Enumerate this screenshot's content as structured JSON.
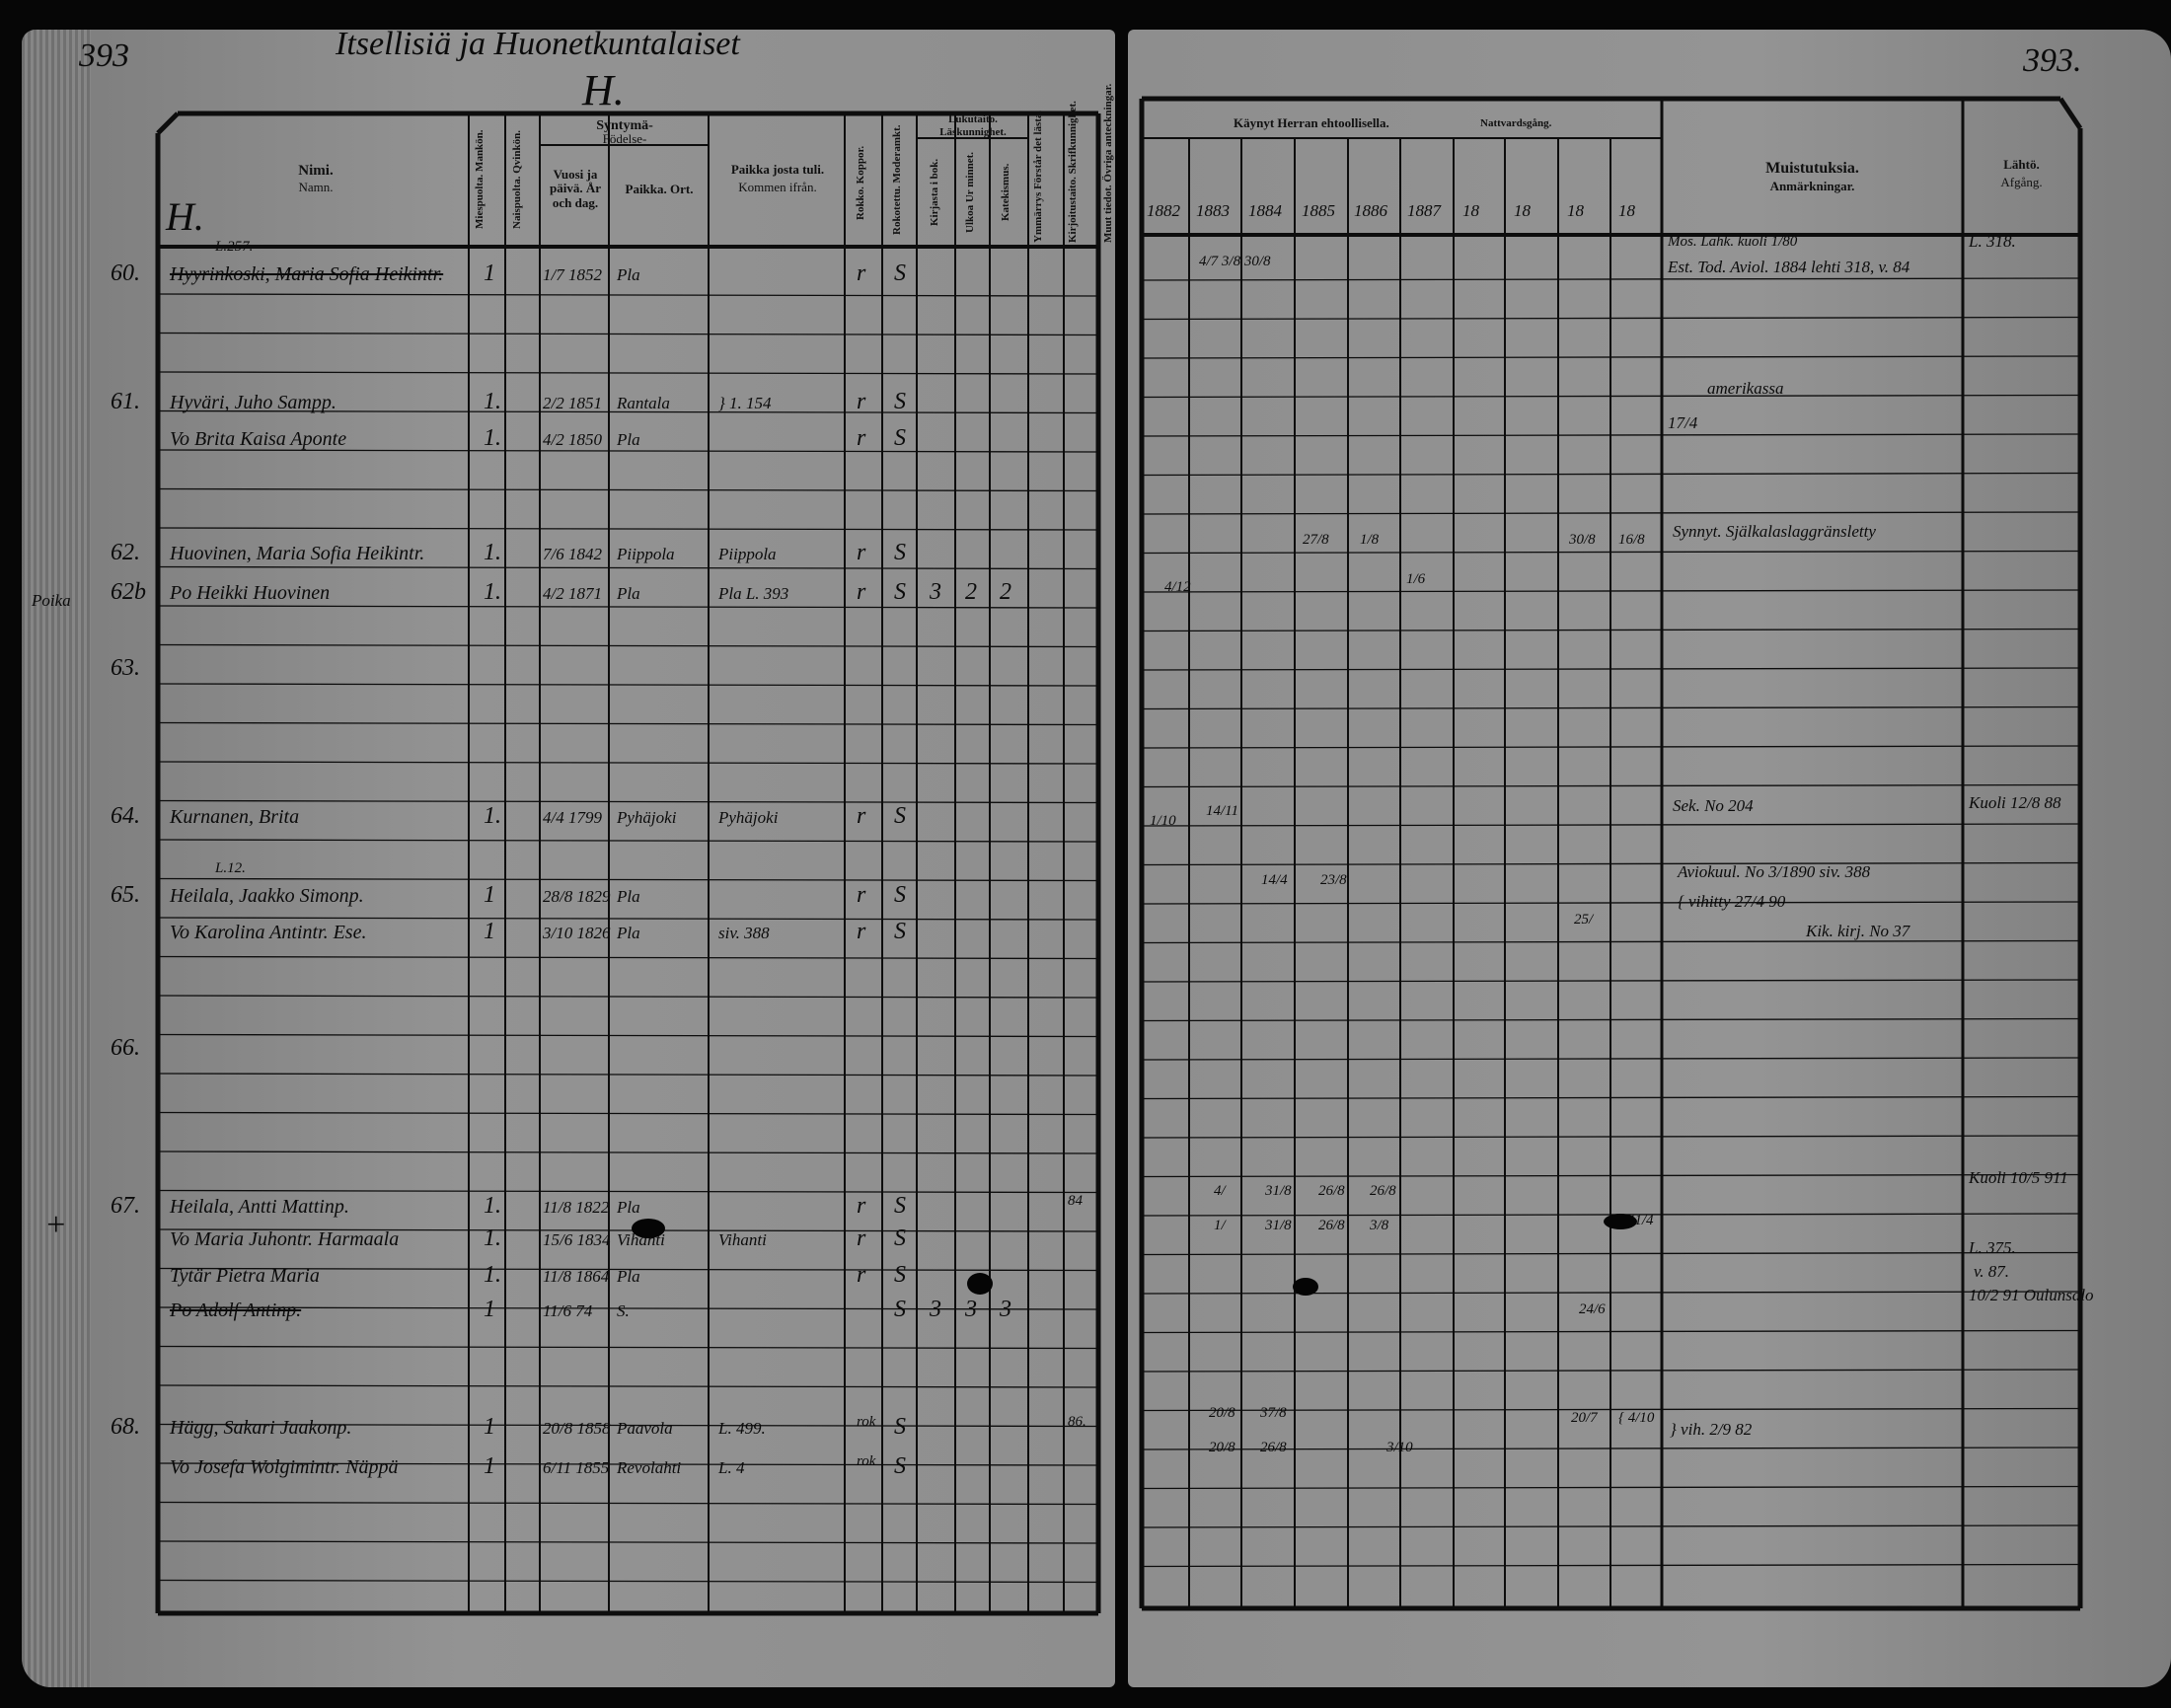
{
  "left_page": {
    "page_number": "393",
    "title": "Itsellisiä ja Huonetkuntalaiset",
    "letter": "H.",
    "section_letter": "H.",
    "headers": {
      "name": "Nimi.",
      "name_sv": "Namn.",
      "male": "Miespuolta. Mankön.",
      "female": "Naispuolta. Qvinkön.",
      "birth": "Syntymä-",
      "birth_sv": "Födelse-",
      "birth_date": "Vuosi ja päivä. År och dag.",
      "birth_place": "Paikka. Ort.",
      "came_from": "Paikka josta tuli.",
      "came_from_sv": "Kommen ifrån.",
      "smallpox": "Rokko. Koppor.",
      "vaccination": "Rokotettu. Moderamkt.",
      "reading": "Lukutaito.",
      "reading_sv": "Läskunnighet.",
      "read_book": "Kirjasta i bok.",
      "read_memory": "Ulkoa Ur minnet.",
      "catechism": "Katekismus.",
      "explanation": "Ymmärrys Förstår det lästa.",
      "writing": "Kirjoitustaito. Skrifkunnighet.",
      "other": "Muut tiedot. Övriga anteckningar."
    },
    "margin": [
      "Poika",
      "+"
    ],
    "rows": [
      {
        "num": "60.",
        "note": "L.257.",
        "name": "Hyyrinkoski, Maria Sofia Heikintr.",
        "struck": true,
        "sex": "1",
        "born": "1/7 1852",
        "place": "Pla",
        "c1": "r",
        "c2": "S"
      },
      {
        "num": "61.",
        "name": "Hyväri, Juho Sampp.",
        "sex": "1.",
        "born": "2/2 1851",
        "place": "Rantala",
        "from": "} 1. 154",
        "c1": "r",
        "c2": "S"
      },
      {
        "num": "",
        "name": "Vo Brita Kaisa Aponte",
        "sex": "1.",
        "born": "4/2 1850",
        "place": "Pla",
        "c1": "r",
        "c2": "S"
      },
      {
        "num": "62.",
        "name": "Huovinen, Maria Sofia Heikintr.",
        "sex": "1.",
        "born": "7/6 1842",
        "place": "Piippola",
        "from": "Piippola",
        "c1": "r",
        "c2": "S"
      },
      {
        "num": "62b",
        "name": "Po Heikki Huovinen",
        "sex": "1.",
        "born": "4/2 1871",
        "place": "Pla",
        "from": "Pla L. 393",
        "c1": "r",
        "c2": "S",
        "c3": "3",
        "c4": "2",
        "c5": "2"
      },
      {
        "num": "63."
      },
      {
        "num": "64.",
        "name": "Kurnanen, Brita",
        "sex": "1.",
        "born": "4/4 1799",
        "place": "Pyhäjoki",
        "from": "Pyhäjoki",
        "c1": "r",
        "c2": "S"
      },
      {
        "num": "65.",
        "note": "L.12.",
        "name": "Heilala, Jaakko Simonp.",
        "sex": "1",
        "born": "28/8 1829",
        "place": "Pla",
        "c1": "r",
        "c2": "S"
      },
      {
        "num": "",
        "name": "Vo Karolina Antintr. Ese.",
        "sex": "1",
        "born": "3/10 1826",
        "place": "Pla",
        "from": "siv. 388",
        "c1": "r",
        "c2": "S"
      },
      {
        "num": "66."
      },
      {
        "num": "67.",
        "name": "Heilala, Antti Mattinp.",
        "sex": "1.",
        "born": "11/8 1822",
        "place": "Pla",
        "c1": "r",
        "c2": "S",
        "c6": "84"
      },
      {
        "num": "",
        "name": "Vo Maria Juhontr. Harmaala",
        "sex": "1.",
        "born": "15/6 1834",
        "place": "Vihanti",
        "from": "Vihanti",
        "c1": "r",
        "c2": "S"
      },
      {
        "num": "",
        "name": "Tytär Pietra Maria",
        "sex": "1.",
        "born": "11/8 1864",
        "place": "Pla",
        "c1": "r",
        "c2": "S"
      },
      {
        "num": "",
        "name": "Po Adolf Antinp.",
        "struck": true,
        "sex": "1",
        "born": "11/6 74",
        "place": "S.",
        "c2": "S",
        "c3": "3",
        "c4": "3",
        "c5": "3"
      },
      {
        "num": "68.",
        "name": "Hägg, Sakari Jaakonp.",
        "sex": "1",
        "born": "20/8 1858",
        "place": "Paavola",
        "from": "L. 499.",
        "c1": "rok",
        "c2": "S",
        "c6": "86."
      },
      {
        "num": "",
        "name": "Vo Josefa Wolgimintr. Näppä",
        "sex": "1",
        "born": "6/11 1855",
        "place": "Revolahti",
        "from": "L. 4",
        "c1": "rok",
        "c2": "S"
      }
    ]
  },
  "right_page": {
    "page_number": "393.",
    "headers": {
      "communion": "Käynyt Herran ehtoollisella.",
      "communion_sv": "Nattvardsgång.",
      "years": [
        "1882",
        "1883",
        "1884",
        "1885",
        "1886",
        "1887",
        "18",
        "18",
        "18",
        "18"
      ],
      "remarks": "Muistutuksia.",
      "remarks_sv": "Anmärkningar.",
      "departure": "Lähtö.",
      "departure_sv": "Afgång."
    },
    "communion": [
      "4/7 3/8 30/8",
      "27/8",
      "1/8",
      "1/6",
      "30/8",
      "16/8",
      "4/12",
      "1/10",
      "14/11",
      "14/4",
      "23/8",
      "25/",
      "4/",
      "31/8",
      "26/8",
      "26/8",
      "1/",
      "31/8",
      "26/8",
      "3/8",
      "11/4",
      "24/6",
      "20/8",
      "37/8",
      "3/10",
      "20/7",
      "{ 4/10",
      "20/8",
      "26/8"
    ],
    "remarks": [
      "Mos. Lahk. kuoli 1/80",
      "Est. Tod. Aviol. 1884 lehti 318, v. 84",
      "amerikassa",
      "17/4",
      "Synnyt. Själkalaslaggränsletty",
      "Sek. No 204",
      "Aviokuul. No 3/1890 siv. 388",
      "{ vihitty 27/4 90",
      "Kik. kirj. No 37",
      "} vih. 2/9 82"
    ],
    "departure": [
      "L. 318.",
      "Kuoli 12/8 88",
      "Kuoli 10/5 911",
      "L. 375.",
      "v. 87.",
      "10/2 91 Oulunsalo"
    ]
  },
  "colors": {
    "paper": "#8e8e8e",
    "ink": "#0b0b0b",
    "background": "#060606"
  }
}
